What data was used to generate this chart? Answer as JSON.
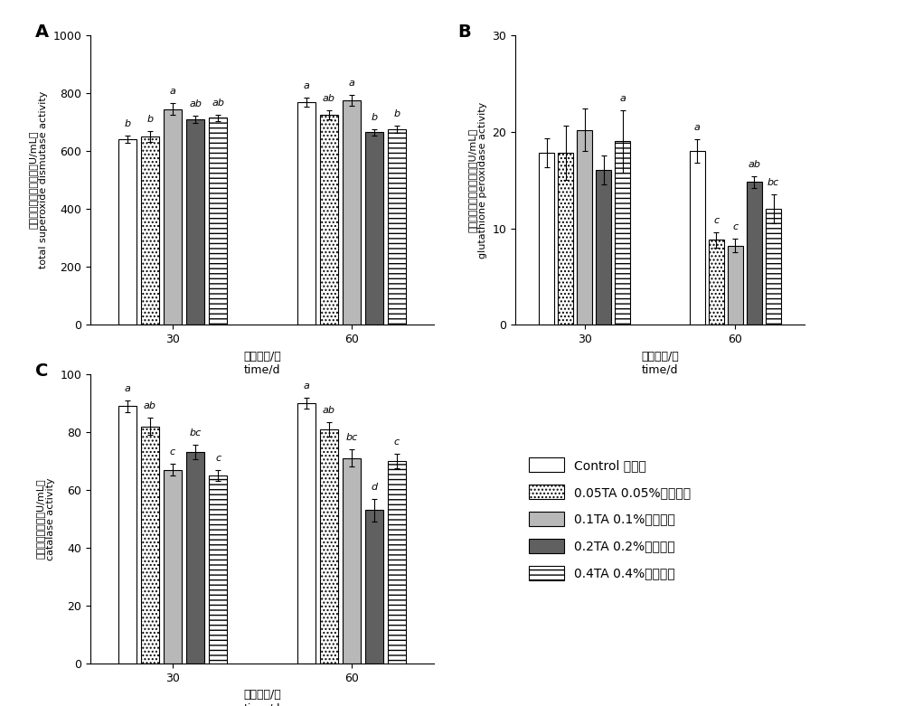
{
  "panel_A": {
    "title": "A",
    "ylabel_cn": "总超氧化物歧化酶活性（U/mL）",
    "ylabel_en": "total superoxide dismutase activity",
    "xlabel_cn": "养殖时间/天",
    "xlabel_en": "time/d",
    "ylim": [
      0,
      1000
    ],
    "yticks": [
      0,
      200,
      400,
      600,
      800,
      1000
    ],
    "groups": [
      "30",
      "60"
    ],
    "values": {
      "30": [
        640,
        650,
        745,
        710,
        715
      ],
      "60": [
        770,
        725,
        775,
        665,
        675
      ]
    },
    "errors": {
      "30": [
        12,
        18,
        20,
        12,
        10
      ],
      "60": [
        15,
        15,
        18,
        10,
        12
      ]
    },
    "labels": {
      "30": [
        "b",
        "b",
        "a",
        "ab",
        "ab"
      ],
      "60": [
        "a",
        "ab",
        "a",
        "b",
        "b"
      ]
    }
  },
  "panel_B": {
    "title": "B",
    "ylabel_cn": "谷胱甘肽过氧化物酶活性（U/mL）",
    "ylabel_en": "glutathione peroxidase activity",
    "xlabel_cn": "养殖时间/天",
    "xlabel_en": "time/d",
    "ylim": [
      0,
      30
    ],
    "yticks": [
      0,
      10,
      20,
      30
    ],
    "groups": [
      "30",
      "60"
    ],
    "values": {
      "30": [
        17.8,
        17.8,
        20.2,
        16.0,
        19.0
      ],
      "60": [
        18.0,
        8.8,
        8.2,
        14.8,
        12.0
      ]
    },
    "errors": {
      "30": [
        1.5,
        2.8,
        2.2,
        1.5,
        3.2
      ],
      "60": [
        1.2,
        0.8,
        0.7,
        0.6,
        1.5
      ]
    },
    "labels": {
      "30": [
        "",
        "",
        "",
        "",
        "a"
      ],
      "60": [
        "a",
        "c",
        "c",
        "ab",
        "bc"
      ]
    }
  },
  "panel_C": {
    "title": "C",
    "ylabel_cn": "过氧化氢酶活力（U/mL）",
    "ylabel_en": "catalase activity",
    "xlabel_cn": "养殖时间/天",
    "xlabel_en": "time/d",
    "ylim": [
      0,
      100
    ],
    "yticks": [
      0,
      20,
      40,
      60,
      80,
      100
    ],
    "groups": [
      "30",
      "60"
    ],
    "values": {
      "30": [
        89,
        82,
        67,
        73,
        65
      ],
      "60": [
        90,
        81,
        71,
        53,
        70
      ]
    },
    "errors": {
      "30": [
        2,
        3,
        2,
        2.5,
        2
      ],
      "60": [
        2,
        2.5,
        3,
        4,
        2.5
      ]
    },
    "labels": {
      "30": [
        "a",
        "ab",
        "c",
        "bc",
        "c"
      ],
      "60": [
        "a",
        "ab",
        "bc",
        "d",
        "c"
      ]
    }
  },
  "legend_labels": [
    "Control 对照组",
    "0.05TA 0.05%单宁酸组",
    "0.1TA 0.1%单宁酸组",
    "0.2TA 0.2%单宁酸组",
    "0.4TA 0.4%单宁酸组"
  ]
}
